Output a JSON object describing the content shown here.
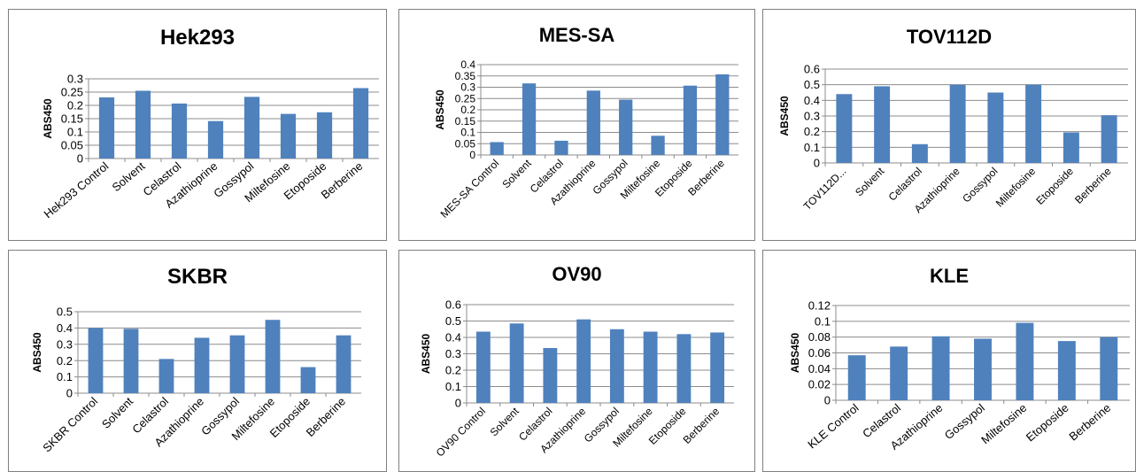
{
  "colors": {
    "bar": "#4f81bd",
    "grid": "#8c8c8c",
    "axis": "#8c8c8c"
  },
  "chart_data": [
    {
      "type": "bar",
      "title": "Hek293",
      "ylabel": "ABS450",
      "xlabel": "",
      "ylim": [
        0,
        0.3
      ],
      "yticks": [
        "0",
        "0.05",
        "0.1",
        "0.15",
        "0.2",
        "0.25",
        "0.3"
      ],
      "categories": [
        "Hek293 Control",
        "Solvent",
        "Celastrol",
        "Azathioprine",
        "Gossypol",
        "Miltefosine",
        "Etoposide",
        "Berberine"
      ],
      "values": [
        0.23,
        0.255,
        0.207,
        0.141,
        0.232,
        0.168,
        0.174,
        0.265
      ],
      "grid": true
    },
    {
      "type": "bar",
      "title": "MES-SA",
      "ylabel": "ABS450",
      "xlabel": "",
      "ylim": [
        0,
        0.4
      ],
      "yticks": [
        "0",
        "0.05",
        "0.1",
        "0.15",
        "0.2",
        "0.25",
        "0.3",
        "0.35",
        "0.4"
      ],
      "categories": [
        "MES-SA Control",
        "Solvent",
        "Celastrol",
        "Azathioprine",
        "Gossypol",
        "Miltefosine",
        "Etoposide",
        "Berberine"
      ],
      "values": [
        0.057,
        0.317,
        0.063,
        0.285,
        0.245,
        0.085,
        0.307,
        0.357
      ],
      "grid": true
    },
    {
      "type": "bar",
      "title": "TOV112D",
      "ylabel": "ABS450",
      "xlabel": "",
      "ylim": [
        0,
        0.6
      ],
      "yticks": [
        "0",
        "0.1",
        "0.2",
        "0.3",
        "0.4",
        "0.5",
        "0.6"
      ],
      "categories": [
        "TOV112D...",
        "Solvent",
        "Celastrol",
        "Azathioprine",
        "Gossypol",
        "Miltefosine",
        "Etoposide",
        "Berberine"
      ],
      "values": [
        0.44,
        0.49,
        0.12,
        0.5,
        0.45,
        0.5,
        0.195,
        0.305
      ],
      "grid": true
    },
    {
      "type": "bar",
      "title": "SKBR",
      "ylabel": "ABS450",
      "xlabel": "",
      "ylim": [
        0,
        0.5
      ],
      "yticks": [
        "0",
        "0.1",
        "0.2",
        "0.3",
        "0.4",
        "0.5"
      ],
      "categories": [
        "SKBR Control",
        "Solvent",
        "Celastrol",
        "Azathioprine",
        "Gossypol",
        "Miltefosine",
        "Etoposide",
        "Berberine"
      ],
      "values": [
        0.4,
        0.395,
        0.21,
        0.34,
        0.355,
        0.45,
        0.16,
        0.355
      ],
      "grid": true
    },
    {
      "type": "bar",
      "title": "OV90",
      "ylabel": "ABS450",
      "xlabel": "",
      "ylim": [
        0,
        0.6
      ],
      "yticks": [
        "0",
        "0.1",
        "0.2",
        "0.3",
        "0.4",
        "0.5",
        "0.6"
      ],
      "categories": [
        "OV90 Control",
        "Solvent",
        "Celastrol",
        "Azathioprine",
        "Gossypol",
        "Miltefosine",
        "Etoposide",
        "Berberine"
      ],
      "values": [
        0.435,
        0.485,
        0.335,
        0.51,
        0.45,
        0.435,
        0.42,
        0.43
      ],
      "grid": true
    },
    {
      "type": "bar",
      "title": "KLE",
      "ylabel": "ABS450",
      "xlabel": "",
      "ylim": [
        0,
        0.12
      ],
      "yticks": [
        "0",
        "0.02",
        "0.04",
        "0.06",
        "0.08",
        "0.1",
        "0.12"
      ],
      "categories": [
        "KLE Control",
        "Celastrol",
        "Azathioprine",
        "Gossypol",
        "Miltefosine",
        "Etoposide",
        "Berberine"
      ],
      "values": [
        0.057,
        0.068,
        0.081,
        0.078,
        0.098,
        0.075,
        0.08
      ],
      "grid": true
    }
  ]
}
